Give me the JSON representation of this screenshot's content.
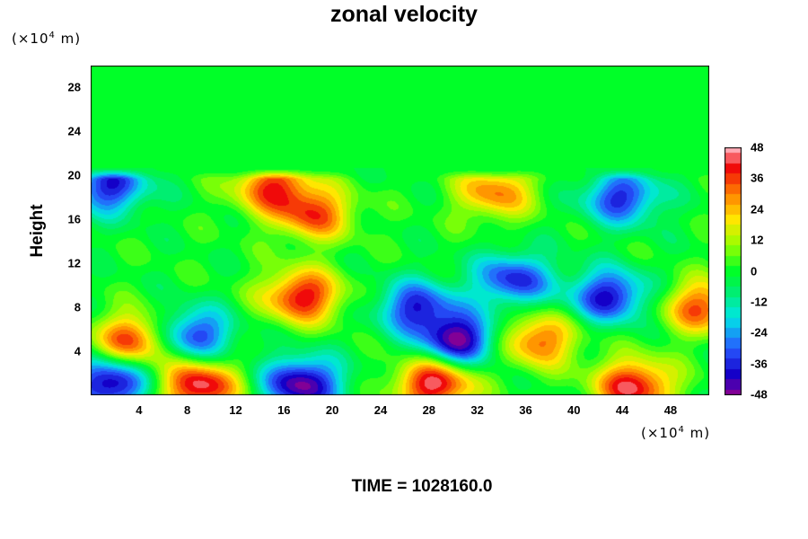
{
  "chart_data": {
    "type": "heatmap",
    "title": "zonal velocity",
    "ylabel": "Height",
    "x_unit": "(×10",
    "x_unit_exp": "4",
    "x_unit_suffix": " m)",
    "y_unit": "(×10",
    "y_unit_exp": "4",
    "y_unit_suffix": " m)",
    "x_ticks": [
      "4",
      "8",
      "12",
      "16",
      "20",
      "24",
      "28",
      "32",
      "36",
      "40",
      "44",
      "48"
    ],
    "y_ticks": [
      "4",
      "8",
      "12",
      "16",
      "20",
      "24",
      "28"
    ],
    "xlim": [
      0,
      51.2
    ],
    "ylim": [
      0,
      30
    ],
    "colorbar": {
      "range": [
        -48,
        48
      ],
      "labels": [
        "48",
        "36",
        "24",
        "12",
        "0",
        "-12",
        "-24",
        "-36",
        "-48"
      ],
      "colormap": "rainbow-purple-to-pink"
    },
    "field_description_values": [
      {
        "x": 1.5,
        "y": 19.0,
        "u": -38
      },
      {
        "x": 3.5,
        "y": 5.0,
        "u": 38
      },
      {
        "x": 1.5,
        "y": 1.0,
        "u": -46
      },
      {
        "x": 9.0,
        "y": 0.8,
        "u": 46
      },
      {
        "x": 8.5,
        "y": 5.5,
        "u": -36
      },
      {
        "x": 15.0,
        "y": 19.0,
        "u": 36
      },
      {
        "x": 17.5,
        "y": 9.0,
        "u": 42
      },
      {
        "x": 18.5,
        "y": 16.5,
        "u": 34
      },
      {
        "x": 17.5,
        "y": 1.0,
        "u": -48
      },
      {
        "x": 28.5,
        "y": 1.0,
        "u": 46
      },
      {
        "x": 30.5,
        "y": 5.0,
        "u": -47
      },
      {
        "x": 27.0,
        "y": 8.0,
        "u": -36
      },
      {
        "x": 33.5,
        "y": 18.5,
        "u": 30
      },
      {
        "x": 37.0,
        "y": 5.0,
        "u": 34
      },
      {
        "x": 44.0,
        "y": 18.0,
        "u": -36
      },
      {
        "x": 45.0,
        "y": 0.8,
        "u": 44
      },
      {
        "x": 43.0,
        "y": 9.0,
        "u": -40
      },
      {
        "x": 35.0,
        "y": 10.5,
        "u": -36
      },
      {
        "x": 50.5,
        "y": 8.0,
        "u": 34
      }
    ],
    "upper_layer_value": -2,
    "time_label": "TIME = 1028160.0"
  }
}
